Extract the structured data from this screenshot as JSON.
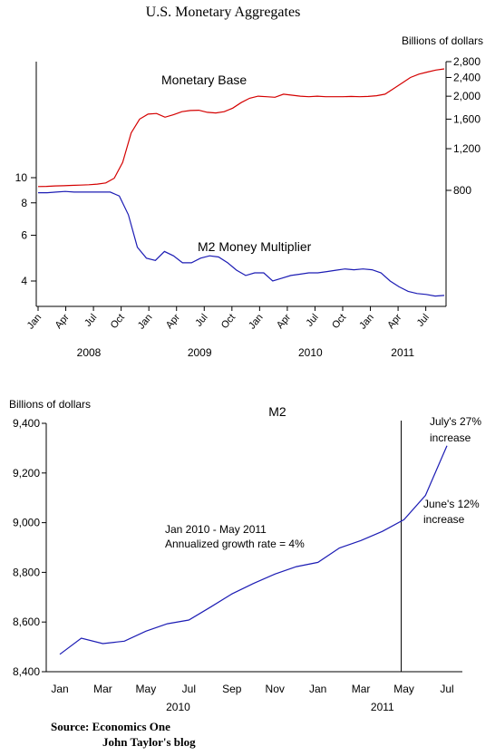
{
  "page_title": "U.S.  Monetary Aggregates",
  "source_line1": "Source:  Economics One",
  "source_line2": "John Taylor's blog",
  "chart_data": [
    {
      "type": "line",
      "title": "",
      "right_axis_label": "Billions of dollars",
      "x_tick_labels": [
        "Jan",
        "Apr",
        "Jul",
        "Oct",
        "Jan",
        "Apr",
        "Jul",
        "Oct",
        "Jan",
        "Apr",
        "Jul",
        "Oct",
        "Jan",
        "Apr",
        "Jul"
      ],
      "year_labels": [
        "2008",
        "2009",
        "2010",
        "2011"
      ],
      "left_axis": {
        "ticks": [
          4,
          6,
          8,
          10
        ],
        "scale": "log"
      },
      "right_axis": {
        "ticks": [
          800,
          1200,
          1600,
          2000,
          2400,
          2800
        ],
        "tick_labels": [
          "800",
          "1,200",
          "1,600",
          "2,000",
          "2,400",
          "2,800"
        ],
        "scale": "log"
      },
      "grid": false,
      "series": [
        {
          "name": "Monetary Base",
          "axis": "right",
          "color": "#d40000",
          "values": [
            830,
            832,
            835,
            837,
            840,
            842,
            845,
            850,
            860,
            900,
            1050,
            1400,
            1600,
            1680,
            1690,
            1630,
            1670,
            1720,
            1740,
            1745,
            1710,
            1700,
            1720,
            1780,
            1880,
            1960,
            2000,
            1990,
            1980,
            2040,
            2020,
            2000,
            1990,
            2000,
            1990,
            1990,
            1990,
            1995,
            1990,
            1995,
            2010,
            2040,
            2150,
            2270,
            2400,
            2480,
            2530,
            2580,
            2610
          ]
        },
        {
          "name": "M2 Money Multiplier",
          "axis": "left",
          "color": "#1c1cb4",
          "values": [
            8.75,
            8.75,
            8.8,
            8.85,
            8.8,
            8.8,
            8.8,
            8.8,
            8.8,
            8.5,
            7.2,
            5.4,
            4.9,
            4.8,
            5.2,
            5.0,
            4.7,
            4.7,
            4.9,
            5.0,
            4.95,
            4.7,
            4.4,
            4.2,
            4.3,
            4.3,
            4.0,
            4.1,
            4.2,
            4.25,
            4.3,
            4.3,
            4.35,
            4.4,
            4.45,
            4.42,
            4.45,
            4.42,
            4.3,
            4.0,
            3.8,
            3.65,
            3.58,
            3.55,
            3.5,
            3.52
          ]
        }
      ]
    },
    {
      "type": "line",
      "title": "M2",
      "ylabel": "Billions of dollars",
      "categories": [
        "Jan",
        "Feb",
        "Mar",
        "Apr",
        "May",
        "Jun",
        "Jul",
        "Aug",
        "Sep",
        "Oct",
        "Nov",
        "Dec",
        "Jan",
        "Feb",
        "Mar",
        "Apr",
        "May",
        "Jun",
        "Jul"
      ],
      "x_tick_labels": [
        "Jan",
        "Mar",
        "May",
        "Jul",
        "Sep",
        "Nov",
        "Jan",
        "Mar",
        "May",
        "Jul"
      ],
      "year_labels": [
        "2010",
        "2011"
      ],
      "ylim": [
        8400,
        9400
      ],
      "y_ticks": [
        8400,
        8600,
        8800,
        9000,
        9200,
        9400
      ],
      "y_tick_labels": [
        "8,400",
        "8,600",
        "8,800",
        "9,000",
        "9,200",
        "9,400"
      ],
      "grid": false,
      "series": [
        {
          "name": "",
          "color": "#1c1cb4",
          "values": [
            8470,
            8535,
            8513,
            8523,
            8563,
            8593,
            8608,
            8660,
            8713,
            8755,
            8793,
            8823,
            8840,
            8898,
            8928,
            8965,
            9012,
            9110,
            9310
          ]
        }
      ],
      "vertical_marker_at": "May",
      "annotations": [
        {
          "id": "growth1",
          "text": "Jan 2010 - May 2011"
        },
        {
          "id": "growth2",
          "text": "Annualized growth rate = 4%"
        },
        {
          "id": "june1",
          "text": "June's 12%"
        },
        {
          "id": "june2",
          "text": "increase"
        },
        {
          "id": "july1",
          "text": "July's 27%"
        },
        {
          "id": "july2",
          "text": "increase"
        }
      ]
    }
  ]
}
